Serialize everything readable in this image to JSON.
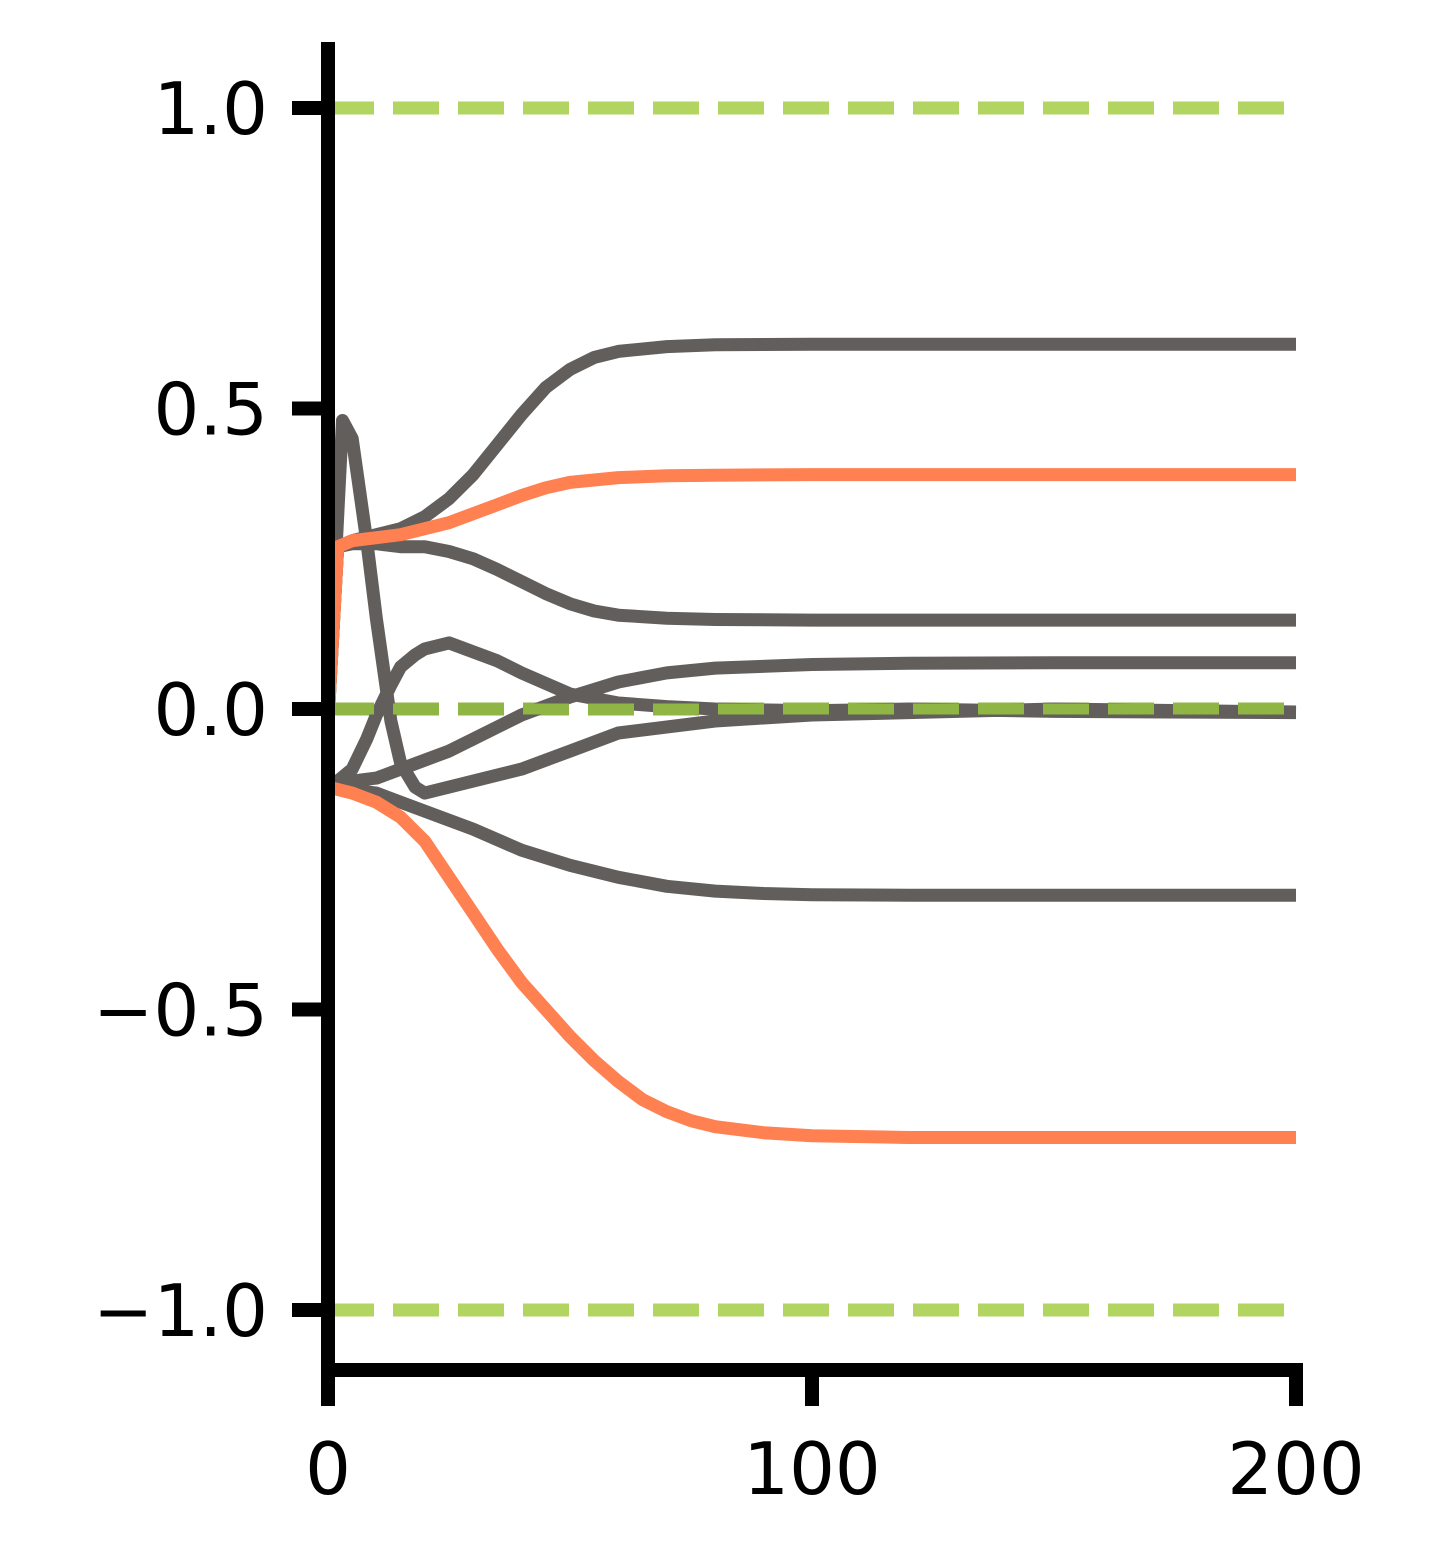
{
  "chart_data": {
    "type": "line",
    "title": "",
    "xlabel": "",
    "ylabel": "",
    "xlim": [
      0,
      200
    ],
    "ylim": [
      -1.1,
      1.1
    ],
    "grid": false,
    "legend": "none",
    "xticks": [
      0,
      100,
      200
    ],
    "xtick_labels": [
      "0",
      "100",
      "200"
    ],
    "yticks": [
      -1.0,
      -0.5,
      0.0,
      0.5,
      1.0
    ],
    "ytick_labels": [
      "−1.0",
      "−0.5",
      "0.0",
      "0.5",
      "1.0"
    ],
    "colors": {
      "gray": "#625e5c",
      "orange": "#ff8050",
      "ref_light": "#b2d561",
      "ref_dark": "#8fb544",
      "axis": "#000000"
    },
    "reference_lines": [
      {
        "y": 1.0,
        "style": "dashed",
        "color": "#b2d561"
      },
      {
        "y": 0.0,
        "style": "dashed",
        "color": "#8fb544"
      },
      {
        "y": -1.0,
        "style": "dashed",
        "color": "#b2d561"
      }
    ],
    "series": [
      {
        "color": "#625e5c",
        "x": [
          0,
          2,
          5,
          10,
          15,
          20,
          25,
          30,
          35,
          40,
          45,
          50,
          55,
          60,
          70,
          80,
          100,
          120,
          150,
          200
        ],
        "y": [
          -0.02,
          0.27,
          0.28,
          0.29,
          0.3,
          0.32,
          0.35,
          0.39,
          0.44,
          0.49,
          0.535,
          0.565,
          0.585,
          0.595,
          0.603,
          0.606,
          0.607,
          0.607,
          0.607,
          0.607
        ]
      },
      {
        "color": "#ff8050",
        "x": [
          0,
          2,
          5,
          10,
          15,
          20,
          25,
          30,
          35,
          40,
          45,
          50,
          60,
          70,
          80,
          100,
          120,
          150,
          200
        ],
        "y": [
          -0.02,
          0.27,
          0.28,
          0.285,
          0.29,
          0.3,
          0.31,
          0.325,
          0.34,
          0.355,
          0.368,
          0.377,
          0.385,
          0.388,
          0.389,
          0.39,
          0.39,
          0.39,
          0.39
        ]
      },
      {
        "color": "#625e5c",
        "x": [
          0,
          2,
          5,
          10,
          15,
          20,
          25,
          30,
          35,
          40,
          45,
          50,
          55,
          60,
          70,
          80,
          100,
          120,
          150,
          200
        ],
        "y": [
          -0.02,
          0.27,
          0.275,
          0.275,
          0.27,
          0.27,
          0.262,
          0.25,
          0.232,
          0.212,
          0.192,
          0.175,
          0.163,
          0.156,
          0.151,
          0.149,
          0.148,
          0.148,
          0.148,
          0.148
        ]
      },
      {
        "color": "#625e5c",
        "x": [
          0,
          3,
          5,
          8,
          10,
          13,
          15,
          18,
          20,
          25,
          30,
          35,
          40,
          50,
          60,
          80,
          100,
          150,
          200
        ],
        "y": [
          0.0,
          0.48,
          0.45,
          0.28,
          0.15,
          -0.02,
          -0.09,
          -0.13,
          -0.14,
          -0.13,
          -0.12,
          -0.11,
          -0.1,
          -0.07,
          -0.04,
          -0.02,
          -0.01,
          0.0,
          -0.005
        ]
      },
      {
        "color": "#625e5c",
        "x": [
          0,
          2,
          5,
          8,
          10,
          13,
          15,
          18,
          20,
          25,
          30,
          35,
          40,
          50,
          60,
          70,
          80,
          100,
          120,
          150,
          200
        ],
        "y": [
          -0.12,
          -0.12,
          -0.1,
          -0.05,
          -0.01,
          0.04,
          0.07,
          0.09,
          0.1,
          0.11,
          0.095,
          0.08,
          0.06,
          0.025,
          0.01,
          0.004,
          0.0,
          -0.003,
          0.0,
          -0.004,
          -0.006
        ]
      },
      {
        "color": "#625e5c",
        "x": [
          0,
          5,
          10,
          15,
          20,
          25,
          30,
          40,
          50,
          60,
          70,
          80,
          100,
          120,
          150,
          200
        ],
        "y": [
          -0.12,
          -0.12,
          -0.115,
          -0.1,
          -0.085,
          -0.07,
          -0.05,
          -0.01,
          0.02,
          0.045,
          0.06,
          0.068,
          0.074,
          0.076,
          0.077,
          0.077
        ]
      },
      {
        "color": "#625e5c",
        "x": [
          0,
          5,
          10,
          15,
          20,
          25,
          30,
          40,
          50,
          60,
          70,
          80,
          90,
          100,
          120,
          150,
          200
        ],
        "y": [
          -0.13,
          -0.135,
          -0.14,
          -0.155,
          -0.17,
          -0.185,
          -0.2,
          -0.235,
          -0.26,
          -0.28,
          -0.295,
          -0.303,
          -0.307,
          -0.309,
          -0.31,
          -0.31,
          -0.31
        ]
      },
      {
        "color": "#ff8050",
        "x": [
          0,
          5,
          10,
          15,
          20,
          25,
          30,
          35,
          40,
          45,
          50,
          55,
          60,
          65,
          70,
          75,
          80,
          90,
          100,
          120,
          150,
          200
        ],
        "y": [
          -0.13,
          -0.14,
          -0.155,
          -0.18,
          -0.22,
          -0.28,
          -0.34,
          -0.4,
          -0.455,
          -0.5,
          -0.545,
          -0.585,
          -0.62,
          -0.65,
          -0.67,
          -0.685,
          -0.695,
          -0.705,
          -0.71,
          -0.713,
          -0.713,
          -0.713
        ]
      }
    ]
  }
}
